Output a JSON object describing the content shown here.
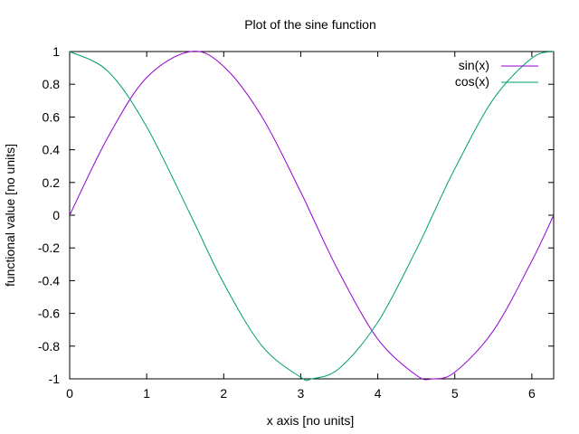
{
  "chart_data": {
    "type": "line",
    "title": "Plot of the sine function",
    "xlabel": "x axis [no units]",
    "ylabel": "functional value [no units]",
    "xlim": [
      0,
      6.2832
    ],
    "ylim": [
      -1,
      1
    ],
    "x_ticks": [
      0,
      1,
      2,
      3,
      4,
      5,
      6
    ],
    "x_tick_labels": [
      "0",
      "1",
      "2",
      "3",
      "4",
      "5",
      "6"
    ],
    "y_ticks": [
      -1,
      -0.8,
      -0.6,
      -0.4,
      -0.2,
      0,
      0.2,
      0.4,
      0.6,
      0.8,
      1
    ],
    "y_tick_labels": [
      "-1",
      "-0.8",
      "-0.6",
      "-0.4",
      "-0.2",
      "0",
      "0.2",
      "0.4",
      "0.6",
      "0.8",
      "1"
    ],
    "grid": false,
    "legend_position": "top-right",
    "x": [
      0,
      0.5,
      1,
      1.5708,
      2,
      2.5,
      3,
      3.1416,
      3.5,
      4,
      4.5,
      4.7124,
      5,
      5.5,
      6,
      6.2832
    ],
    "series": [
      {
        "name": "sin(x)",
        "color": "#9400d3",
        "values": [
          0,
          0.479,
          0.841,
          1,
          0.909,
          0.598,
          0.141,
          0,
          -0.351,
          -0.757,
          -0.978,
          -1,
          -0.959,
          -0.706,
          -0.279,
          0
        ]
      },
      {
        "name": "cos(x)",
        "color": "#009e73",
        "values": [
          1,
          0.878,
          0.54,
          0,
          -0.416,
          -0.801,
          -0.99,
          -1,
          -0.936,
          -0.654,
          -0.211,
          0,
          0.284,
          0.709,
          0.96,
          1
        ]
      }
    ]
  }
}
